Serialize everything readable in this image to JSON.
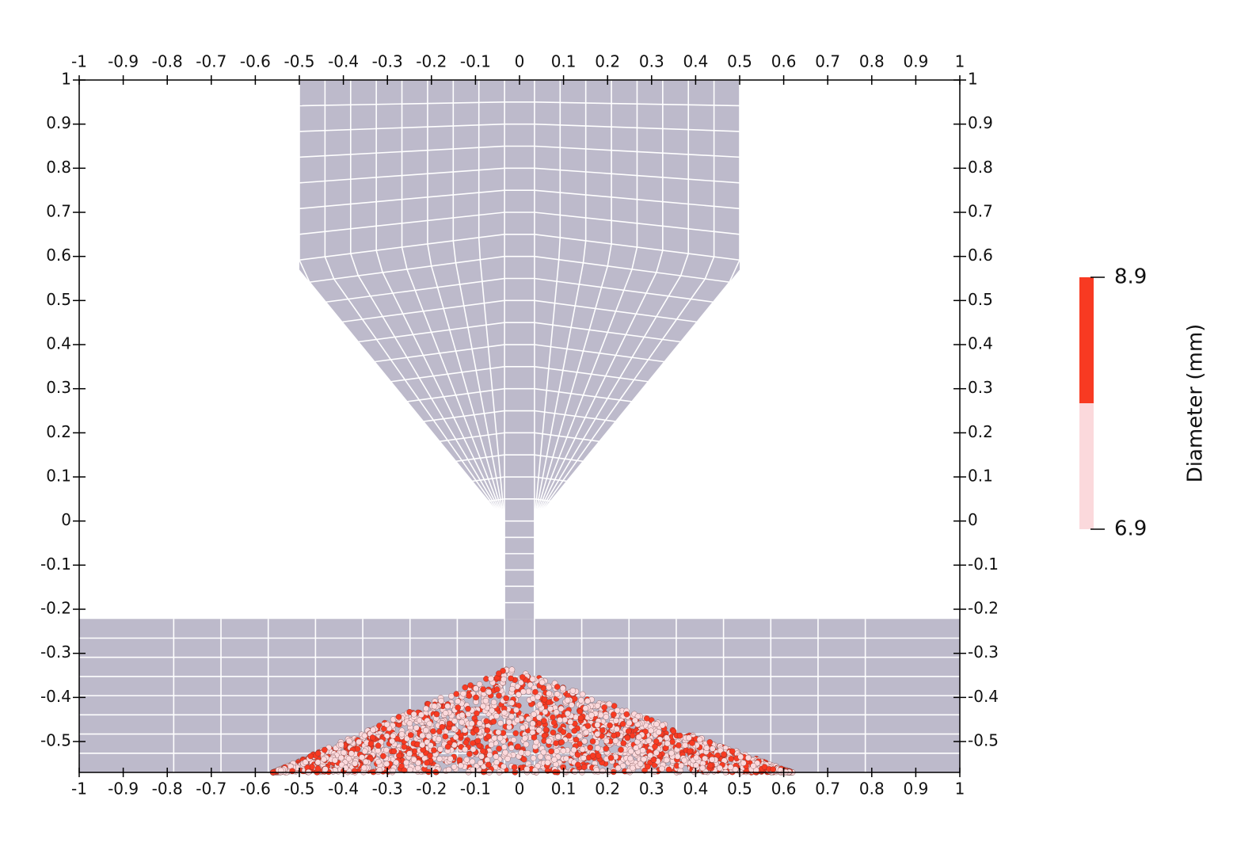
{
  "chart_data": {
    "type": "mesh",
    "xlim": [
      -1,
      1
    ],
    "ylim": [
      -0.57,
      1
    ],
    "xticks": [
      -1,
      -0.9,
      -0.8,
      -0.7,
      -0.6,
      -0.5,
      -0.4,
      -0.3,
      -0.2,
      -0.1,
      0,
      0.1,
      0.2,
      0.3,
      0.4,
      0.5,
      0.6,
      0.7,
      0.8,
      0.9,
      1
    ],
    "yticks": [
      1,
      0.9,
      0.8,
      0.7,
      0.6,
      0.5,
      0.4,
      0.3,
      0.2,
      0.1,
      0,
      -0.1,
      -0.2,
      -0.3,
      -0.4,
      -0.5
    ],
    "colorbar": {
      "title": "Diameter (mm)",
      "range": [
        6.9,
        8.9
      ],
      "ticks": [
        6.9,
        8.9
      ],
      "colors": [
        "#fbd9dc",
        "#f83a22"
      ]
    }
  }
}
